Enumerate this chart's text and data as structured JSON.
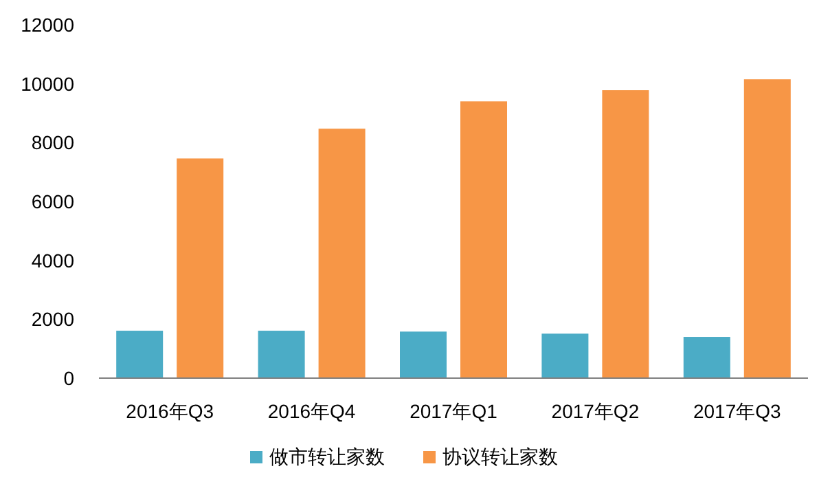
{
  "chart_data": {
    "type": "bar",
    "categories": [
      "2016年Q3",
      "2016年Q4",
      "2017年Q1",
      "2017年Q2",
      "2017年Q3"
    ],
    "series": [
      {
        "name": "做市转让家数",
        "color": "#4bacc6",
        "values": [
          1610,
          1610,
          1580,
          1510,
          1400
        ]
      },
      {
        "name": "协议转让家数",
        "color": "#f79646",
        "values": [
          7460,
          8470,
          9400,
          9780,
          10150
        ]
      }
    ],
    "ylim": [
      0,
      12000
    ],
    "yticks": [
      0,
      2000,
      4000,
      6000,
      8000,
      10000,
      12000
    ],
    "grid": false,
    "legend": "bottom"
  }
}
